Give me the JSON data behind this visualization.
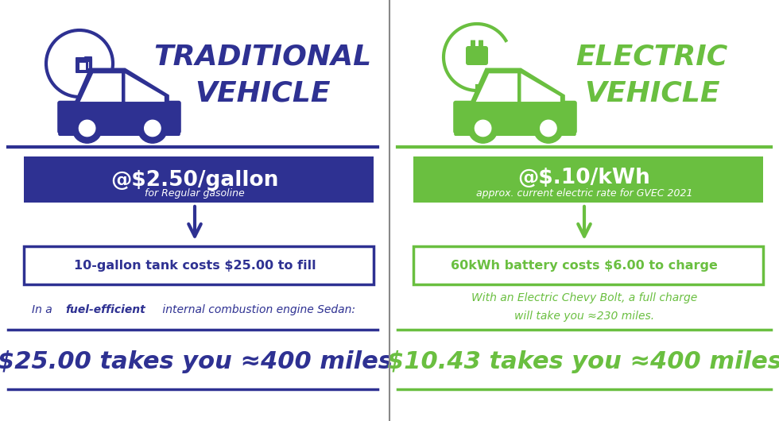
{
  "bg_color": "#ffffff",
  "left": {
    "color": "#2e3192",
    "title_line1": "TRADITIONAL",
    "title_line2": "VEHICLE",
    "rate_main": "@$2.50/gallon",
    "rate_sub": "for Regular gasoline",
    "tank_text": "10-gallon tank costs $25.00 to fill",
    "note_prefix": "In a ",
    "note_bold": "fuel-efficient",
    "note_suffix": " internal combustion engine Sedan:",
    "bottom_text": "$25.00 takes you ≈400 miles"
  },
  "right": {
    "color": "#6abf40",
    "title_line1": "ELECTRIC",
    "title_line2": "VEHICLE",
    "rate_main": "@$.10/kWh",
    "rate_sub": "approx. current electric rate for GVEC 2021",
    "tank_text": "60kWh battery costs $6.00 to charge",
    "note_line1": "With an Electric Chevy Bolt, a full charge",
    "note_line2": "will take you ≈230 miles.",
    "bottom_text": "$10.43 takes you ≈400 miles"
  }
}
